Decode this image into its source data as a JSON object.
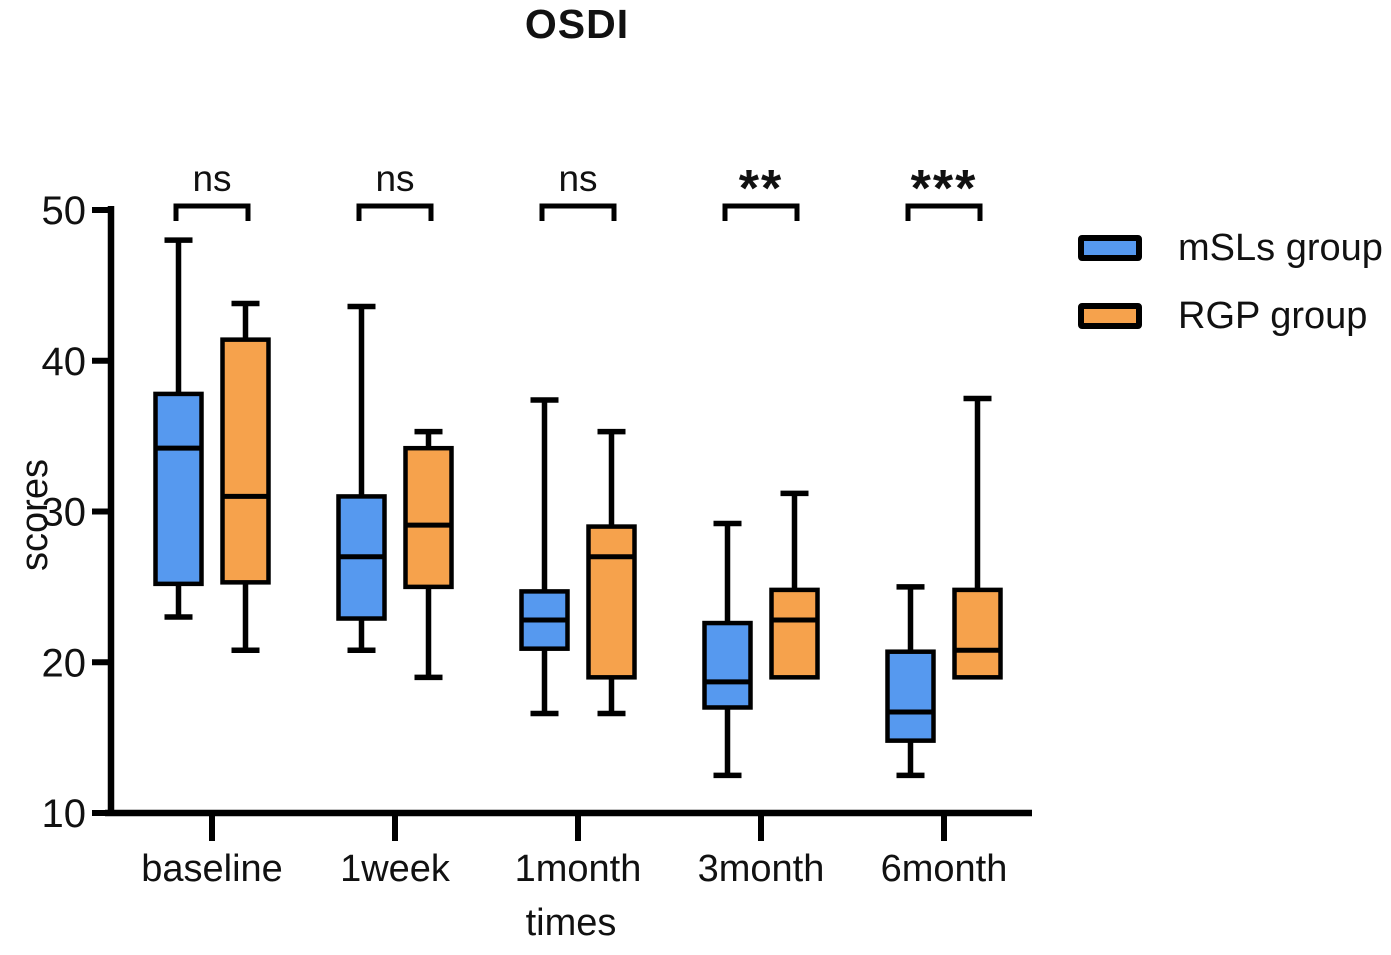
{
  "chart_data": {
    "type": "boxplot",
    "title": "OSDI",
    "xlabel": "times",
    "ylabel": "scores",
    "ylim": [
      10,
      50
    ],
    "yticks": [
      10,
      20,
      30,
      40,
      50
    ],
    "categories": [
      "baseline",
      "1week",
      "1month",
      "3month",
      "6month"
    ],
    "grid": false,
    "legend_position": "top-right",
    "series": [
      {
        "name": "mSLs group",
        "color": "#5699EF",
        "boxes": [
          {
            "min": 23.0,
            "q1": 25.2,
            "median": 34.2,
            "q3": 37.8,
            "max": 48.0
          },
          {
            "min": 20.8,
            "q1": 22.9,
            "median": 27.0,
            "q3": 31.0,
            "max": 43.6
          },
          {
            "min": 16.6,
            "q1": 20.9,
            "median": 22.8,
            "q3": 24.7,
            "max": 37.4
          },
          {
            "min": 12.5,
            "q1": 17.0,
            "median": 18.7,
            "q3": 22.6,
            "max": 29.2
          },
          {
            "min": 12.5,
            "q1": 14.8,
            "median": 16.7,
            "q3": 20.7,
            "max": 25.0
          }
        ]
      },
      {
        "name": "RGP group",
        "color": "#F6A24C",
        "boxes": [
          {
            "min": 20.8,
            "q1": 25.3,
            "median": 31.0,
            "q3": 41.4,
            "max": 43.8
          },
          {
            "min": 19.0,
            "q1": 25.0,
            "median": 29.1,
            "q3": 34.2,
            "max": 35.3
          },
          {
            "min": 16.6,
            "q1": 19.0,
            "median": 27.0,
            "q3": 29.0,
            "max": 35.3
          },
          {
            "min": 19.0,
            "q1": 19.0,
            "median": 22.8,
            "q3": 24.8,
            "max": 31.2
          },
          {
            "min": 19.0,
            "q1": 19.0,
            "median": 20.8,
            "q3": 24.8,
            "max": 37.5
          }
        ]
      }
    ],
    "significance": [
      "ns",
      "ns",
      "ns",
      "**",
      "***"
    ]
  }
}
